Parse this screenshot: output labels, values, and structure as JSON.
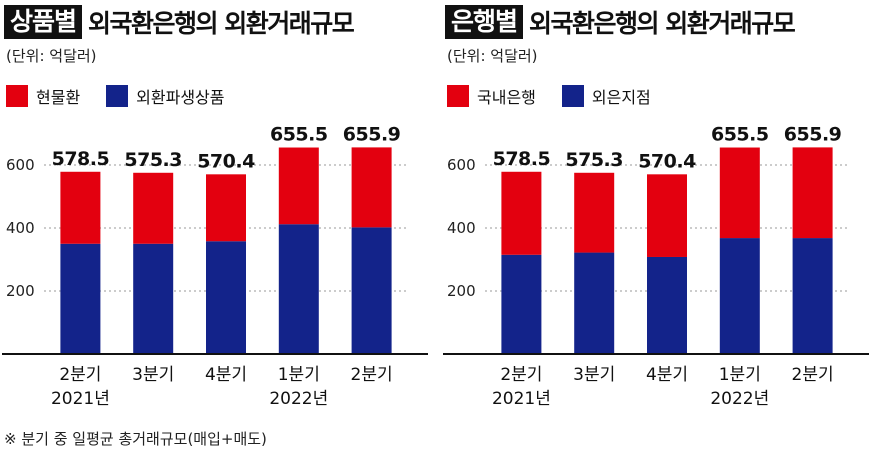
{
  "colors": {
    "red": "#e3000f",
    "navy": "#13238a",
    "grid": "#999999",
    "axis": "#111111"
  },
  "footnote": "※ 분기 중 일평균 총거래규모(매입+매도)",
  "chart_data": [
    {
      "type": "bar",
      "stacked": true,
      "title_badge": "상품별",
      "title_main": "외국환은행의 외환거래규모",
      "unit": "(단위: 억달러)",
      "categories": [
        "2분기",
        "3분기",
        "4분기",
        "1분기",
        "2분기"
      ],
      "category_years": [
        "2021년",
        "",
        "",
        "2022년",
        ""
      ],
      "totals": [
        "578.5",
        "575.3",
        "570.4",
        "655.5",
        "655.9"
      ],
      "series": [
        {
          "name": "외환파생상품",
          "color": "#13238a",
          "values": [
            350,
            350,
            358,
            412,
            402
          ]
        },
        {
          "name": "현물환",
          "color": "#e3000f",
          "values": [
            228.5,
            225.3,
            212.4,
            243.5,
            253.9
          ]
        }
      ],
      "legend_order": [
        1,
        0
      ],
      "y_ticks": [
        "200",
        "400",
        "600"
      ],
      "ylim": [
        0,
        690
      ],
      "grid": true
    },
    {
      "type": "bar",
      "stacked": true,
      "title_badge": "은행별",
      "title_main": "외국환은행의 외환거래규모",
      "unit": "(단위: 억달러)",
      "categories": [
        "2분기",
        "3분기",
        "4분기",
        "1분기",
        "2분기"
      ],
      "category_years": [
        "2021년",
        "",
        "",
        "2022년",
        ""
      ],
      "totals": [
        "578.5",
        "575.3",
        "570.4",
        "655.5",
        "655.9"
      ],
      "series": [
        {
          "name": "외은지점",
          "color": "#13238a",
          "values": [
            315,
            322,
            308,
            368,
            368
          ]
        },
        {
          "name": "국내은행",
          "color": "#e3000f",
          "values": [
            263.5,
            253.3,
            262.4,
            287.5,
            287.9
          ]
        }
      ],
      "legend_order": [
        1,
        0
      ],
      "y_ticks": [
        "200",
        "400",
        "600"
      ],
      "ylim": [
        0,
        690
      ],
      "grid": true
    }
  ]
}
